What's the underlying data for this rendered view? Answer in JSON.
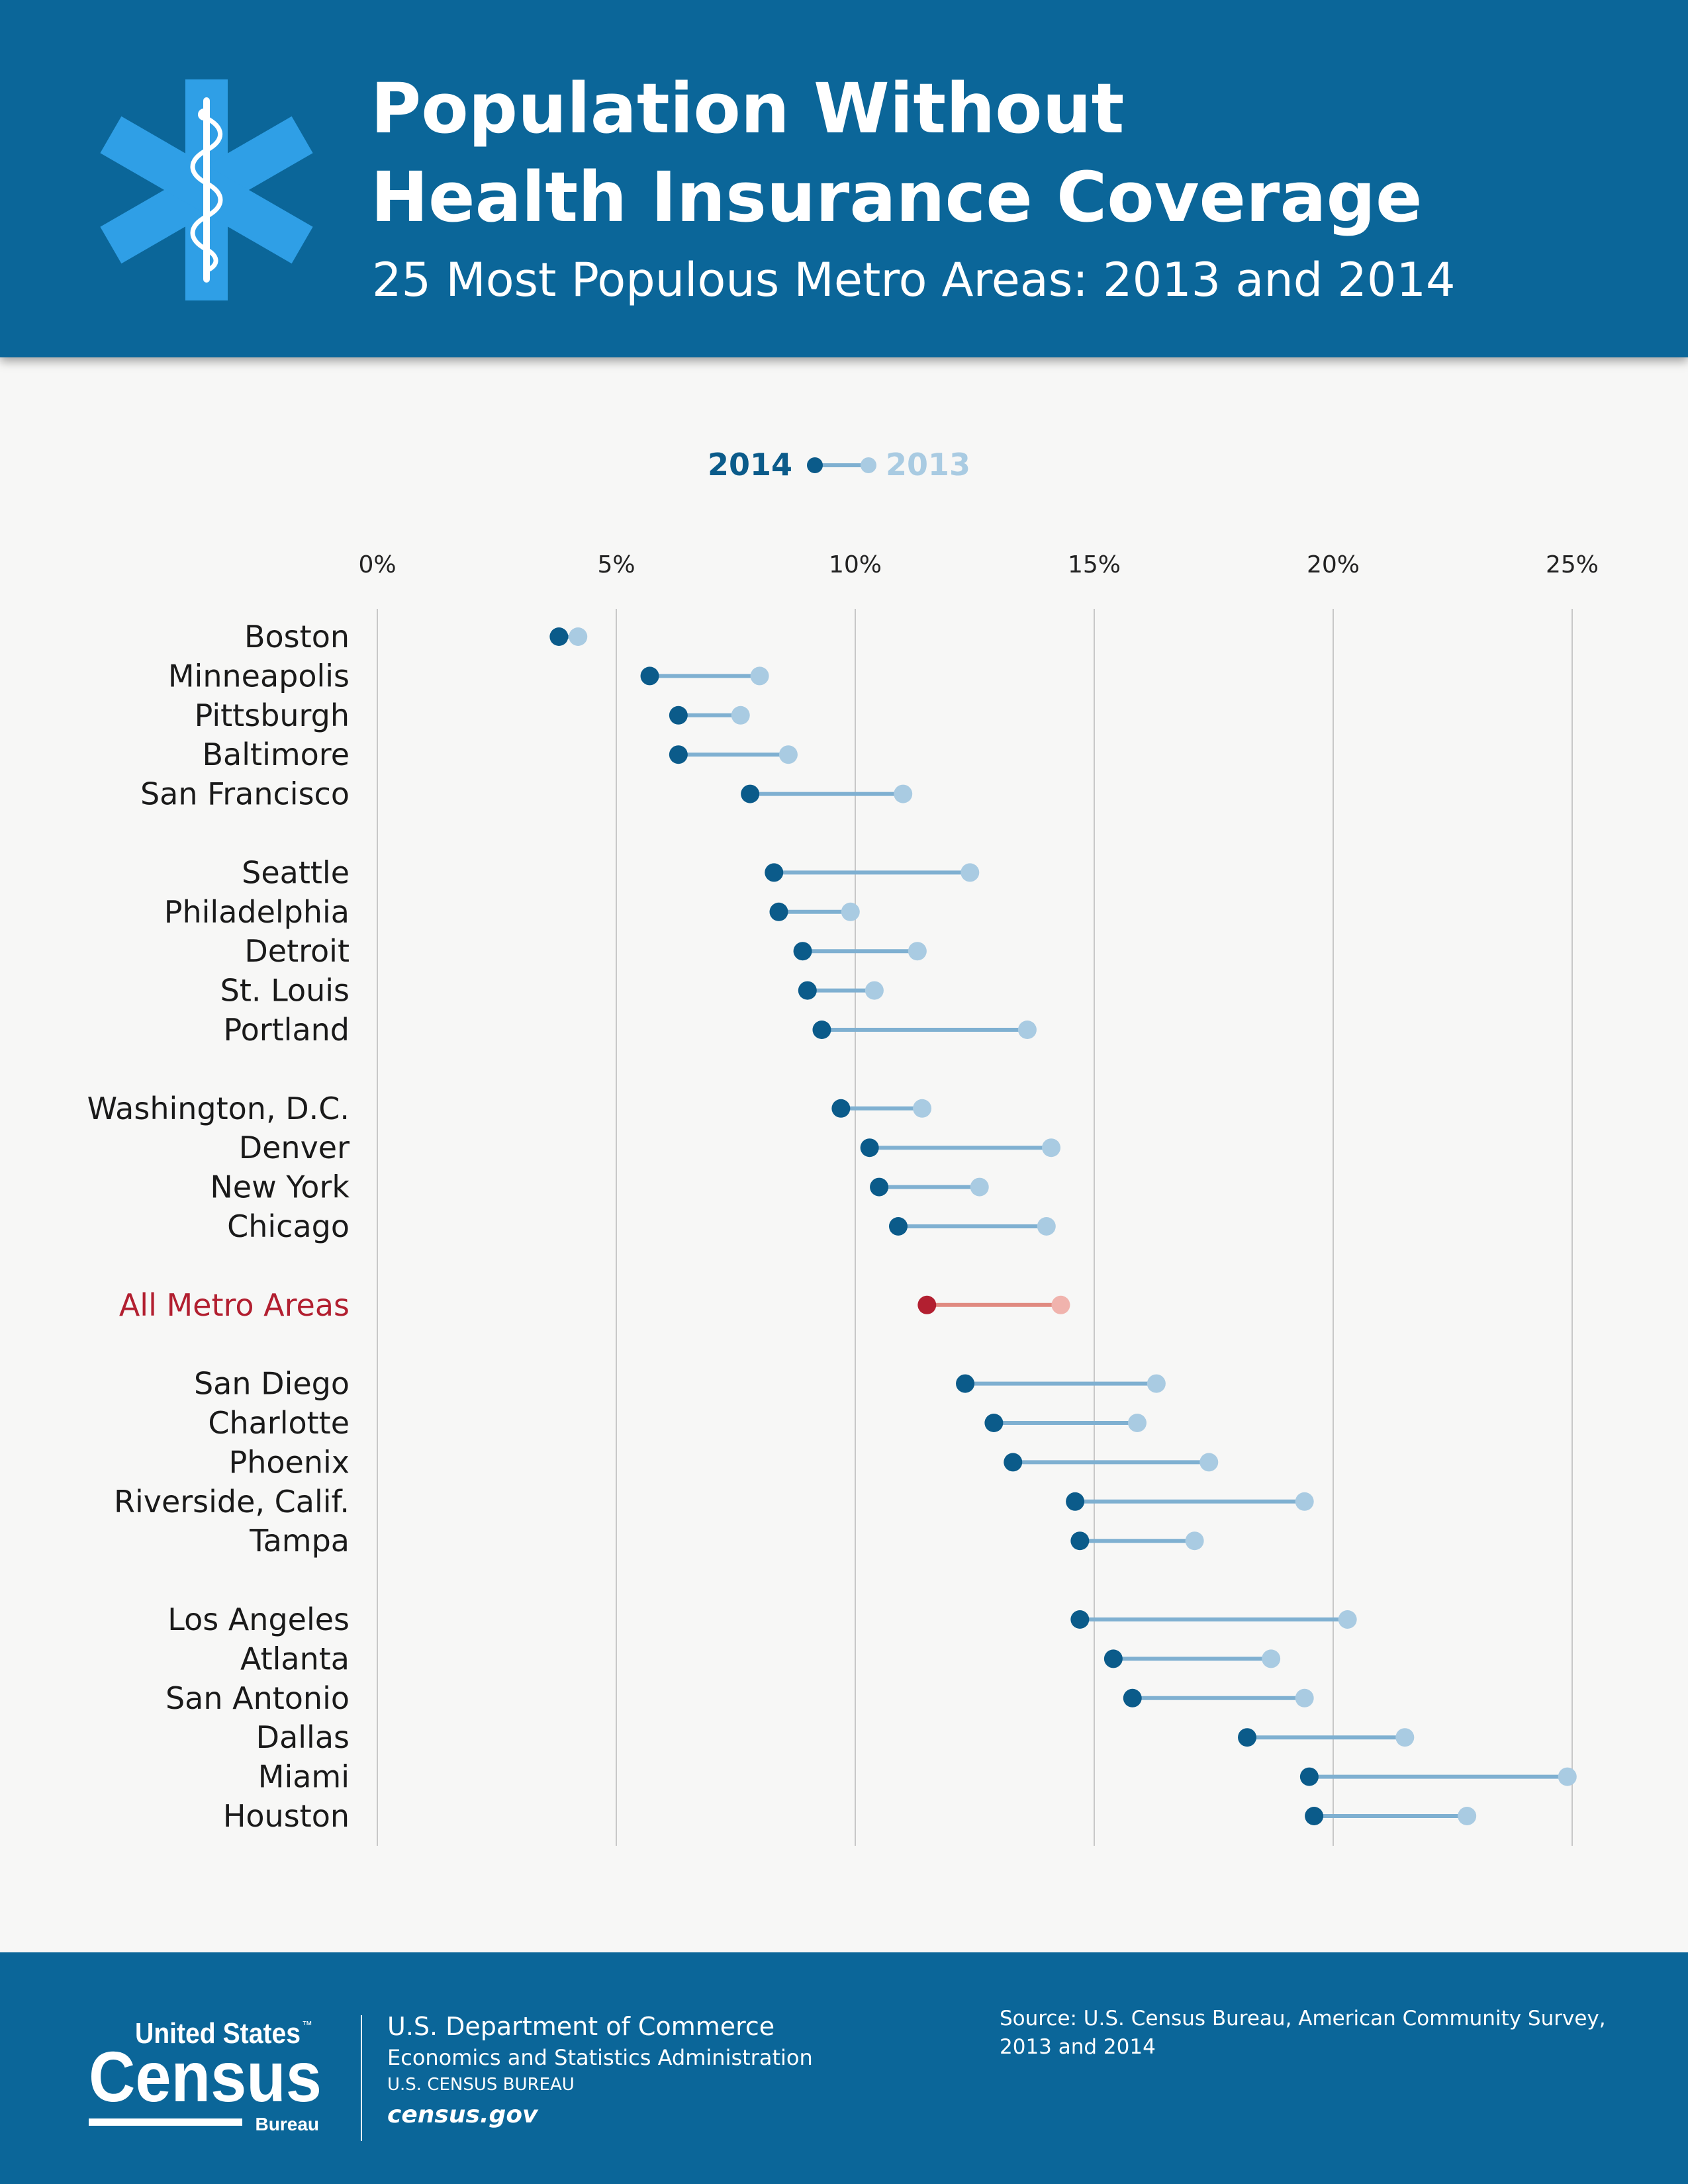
{
  "header": {
    "title_line1": "Population Without",
    "title_line2": "Health Insurance Coverage",
    "subtitle": "25 Most Populous Metro Areas: 2013 and 2014",
    "icon": "star-of-life-icon"
  },
  "colors": {
    "banner": "#0b6699",
    "dot_2014": "#0b5b8a",
    "dot_2013": "#a9cbe2",
    "connector": "#7fb0d1",
    "highlight_2014": "#b21f30",
    "highlight_2013": "#f0b3ad",
    "highlight_connector": "#e08a80",
    "gridline": "#c8c8c8"
  },
  "chart_data": {
    "type": "dumbbell",
    "legend": [
      "2014",
      "2013"
    ],
    "legend_placement": "top-center",
    "x_ticks": [
      0,
      5,
      10,
      15,
      20,
      25
    ],
    "x_tick_labels": [
      "0%",
      "5%",
      "10%",
      "15%",
      "20%",
      "25%"
    ],
    "xlim": [
      0,
      25
    ],
    "grid": true,
    "groups": [
      [
        {
          "name": "Boston",
          "v2014": 3.8,
          "v2013": 4.2
        },
        {
          "name": "Minneapolis",
          "v2014": 5.7,
          "v2013": 8.0
        },
        {
          "name": "Pittsburgh",
          "v2014": 6.3,
          "v2013": 7.6
        },
        {
          "name": "Baltimore",
          "v2014": 6.3,
          "v2013": 8.6
        },
        {
          "name": "San Francisco",
          "v2014": 7.8,
          "v2013": 11.0
        }
      ],
      [
        {
          "name": "Seattle",
          "v2014": 8.3,
          "v2013": 12.4
        },
        {
          "name": "Philadelphia",
          "v2014": 8.4,
          "v2013": 9.9
        },
        {
          "name": "Detroit",
          "v2014": 8.9,
          "v2013": 11.3
        },
        {
          "name": "St. Louis",
          "v2014": 9.0,
          "v2013": 10.4
        },
        {
          "name": "Portland",
          "v2014": 9.3,
          "v2013": 13.6
        }
      ],
      [
        {
          "name": "Washington, D.C.",
          "v2014": 9.7,
          "v2013": 11.4
        },
        {
          "name": "Denver",
          "v2014": 10.3,
          "v2013": 14.1
        },
        {
          "name": "New York",
          "v2014": 10.5,
          "v2013": 12.6
        },
        {
          "name": "Chicago",
          "v2014": 10.9,
          "v2013": 14.0
        }
      ],
      [
        {
          "name": "All Metro Areas",
          "v2014": 11.5,
          "v2013": 14.3,
          "highlight": true
        }
      ],
      [
        {
          "name": "San Diego",
          "v2014": 12.3,
          "v2013": 16.3
        },
        {
          "name": "Charlotte",
          "v2014": 12.9,
          "v2013": 15.9
        },
        {
          "name": "Phoenix",
          "v2014": 13.3,
          "v2013": 17.4
        },
        {
          "name": "Riverside, Calif.",
          "v2014": 14.6,
          "v2013": 19.4
        },
        {
          "name": "Tampa",
          "v2014": 14.7,
          "v2013": 17.1
        }
      ],
      [
        {
          "name": "Los Angeles",
          "v2014": 14.7,
          "v2013": 20.3
        },
        {
          "name": "Atlanta",
          "v2014": 15.4,
          "v2013": 18.7
        },
        {
          "name": "San Antonio",
          "v2014": 15.8,
          "v2013": 19.4
        },
        {
          "name": "Dallas",
          "v2014": 18.2,
          "v2013": 21.5
        },
        {
          "name": "Miami",
          "v2014": 19.5,
          "v2013": 24.9
        },
        {
          "name": "Houston",
          "v2014": 19.6,
          "v2013": 22.8
        }
      ]
    ]
  },
  "footer": {
    "logo_line1": "United States",
    "logo_tm": "™",
    "logo_line2": "Census",
    "logo_line3": "Bureau",
    "department": "U.S. Department of Commerce",
    "administration": "Economics and Statistics Administration",
    "bureau": "U.S. CENSUS BUREAU",
    "url": "census.gov",
    "source_line1": "Source: U.S. Census Bureau, American Community Survey,",
    "source_line2": "2013 and 2014"
  }
}
